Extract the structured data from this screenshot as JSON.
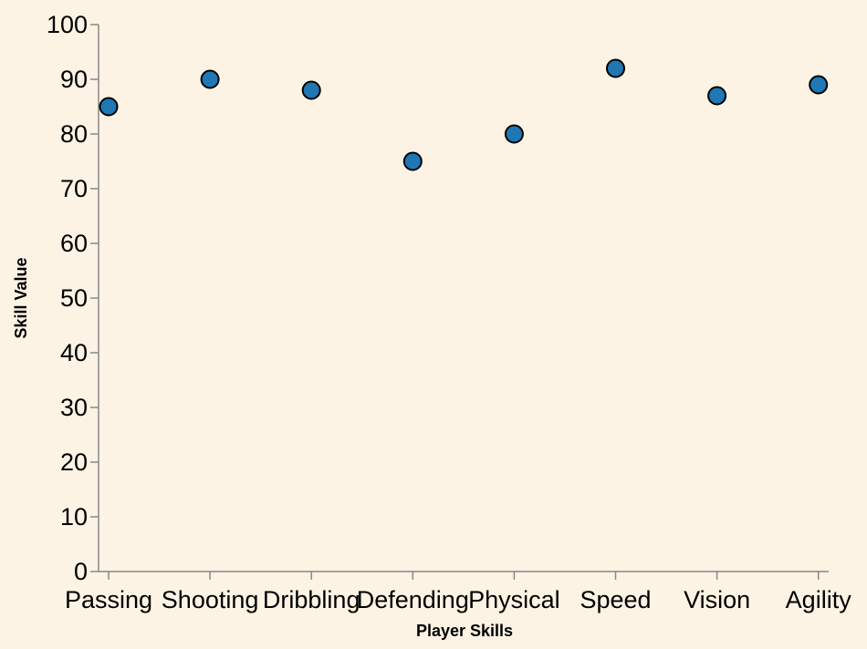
{
  "chart_data": {
    "type": "scatter",
    "categories": [
      "Passing",
      "Shooting",
      "Dribbling",
      "Defending",
      "Physical",
      "Speed",
      "Vision",
      "Agility"
    ],
    "values": [
      85,
      90,
      88,
      75,
      80,
      92,
      87,
      89
    ],
    "xlabel": "Player Skills",
    "ylabel": "Skill Value",
    "ylim": [
      0,
      100
    ],
    "yticks": [
      0,
      10,
      20,
      30,
      40,
      50,
      60,
      70,
      80,
      90,
      100
    ],
    "grid": false,
    "point_color": "#1f77b4",
    "background_color": "#fdf3e4"
  }
}
